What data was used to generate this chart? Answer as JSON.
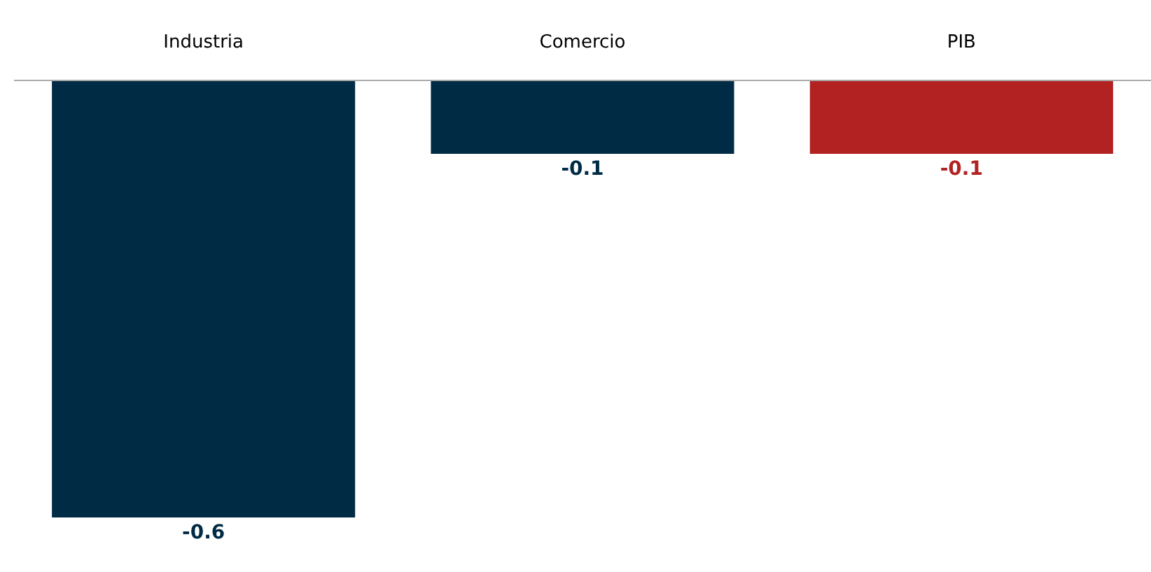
{
  "chart_data": {
    "type": "bar",
    "categories": [
      "Industria",
      "Comercio",
      "PIB"
    ],
    "values": [
      -0.6,
      -0.1,
      -0.1
    ],
    "colors": [
      "#002b45",
      "#002b45",
      "#b22222"
    ],
    "data_labels": true
  }
}
